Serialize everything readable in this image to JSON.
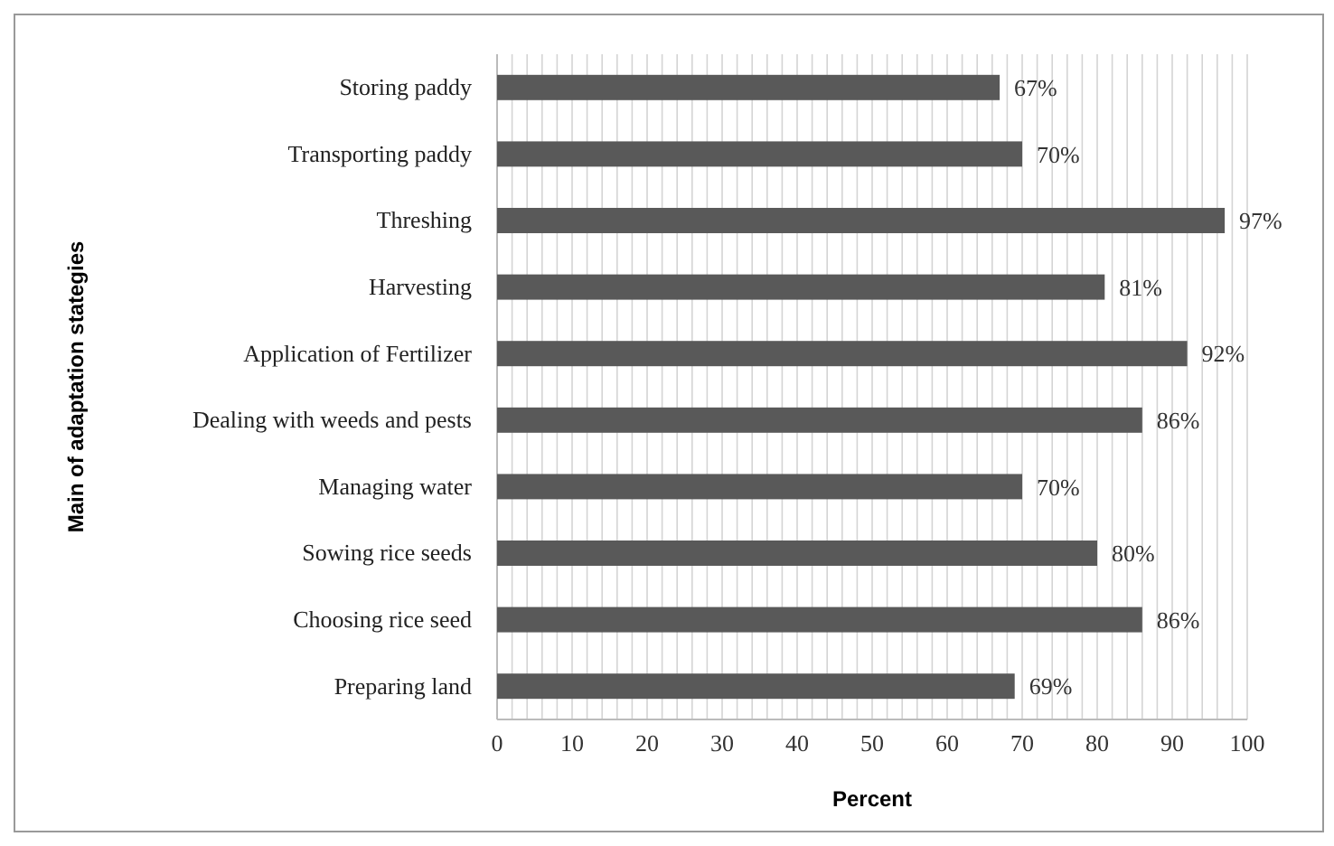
{
  "chart_data": {
    "type": "bar",
    "orientation": "horizontal",
    "xlabel": "Percent",
    "ylabel": "Main of adaptation stategies",
    "categories": [
      "Storing paddy",
      "Transporting paddy",
      "Threshing",
      "Harvesting",
      "Application of Fertilizer",
      "Dealing with weeds and pests",
      "Managing water",
      "Sowing rice seeds",
      "Choosing rice seed",
      "Preparing land"
    ],
    "values": [
      67,
      70,
      97,
      81,
      92,
      86,
      70,
      80,
      86,
      69
    ],
    "value_labels": [
      "67%",
      "70%",
      "97%",
      "81%",
      "92%",
      "86%",
      "70%",
      "80%",
      "86%",
      "69%"
    ],
    "color": "#595959",
    "xlim": [
      0,
      100
    ],
    "xticks": [
      0,
      {
        "value": 2,
        "label": null
      },
      {
        "value": 4,
        "label": null
      },
      {
        "value": 6,
        "label": null
      },
      {
        "value": 8,
        "label": null
      },
      10,
      {
        "value": 12,
        "label": null
      },
      {
        "value": 14,
        "label": null
      },
      {
        "value": 16,
        "label": null
      },
      {
        "value": 18,
        "label": null
      },
      20,
      {
        "value": 22,
        "label": null
      },
      {
        "value": 24,
        "label": null
      },
      {
        "value": 26,
        "label": null
      },
      {
        "value": 28,
        "label": null
      },
      30,
      {
        "value": 32,
        "label": null
      },
      {
        "value": 34,
        "label": null
      },
      {
        "value": 36,
        "label": null
      },
      {
        "value": 38,
        "label": null
      },
      40,
      {
        "value": 42,
        "label": null
      },
      {
        "value": 44,
        "label": null
      },
      {
        "value": 46,
        "label": null
      },
      {
        "value": 48,
        "label": null
      },
      50,
      {
        "value": 52,
        "label": null
      },
      {
        "value": 54,
        "label": null
      },
      {
        "value": 56,
        "label": null
      },
      {
        "value": 58,
        "label": null
      },
      60,
      {
        "value": 62,
        "label": null
      },
      {
        "value": 64,
        "label": null
      },
      {
        "value": 66,
        "label": null
      },
      {
        "value": 68,
        "label": null
      },
      70,
      {
        "value": 72,
        "label": null
      },
      {
        "value": 74,
        "label": null
      },
      {
        "value": 76,
        "label": null
      },
      {
        "value": 78,
        "label": null
      },
      80,
      {
        "value": 82,
        "label": null
      },
      {
        "value": 84,
        "label": null
      },
      {
        "value": 86,
        "label": null
      },
      {
        "value": 88,
        "label": null
      },
      90,
      {
        "value": 92,
        "label": null
      },
      {
        "value": 94,
        "label": null
      },
      {
        "value": 96,
        "label": null
      },
      {
        "value": 98,
        "label": null
      },
      100
    ],
    "grid": "x"
  }
}
